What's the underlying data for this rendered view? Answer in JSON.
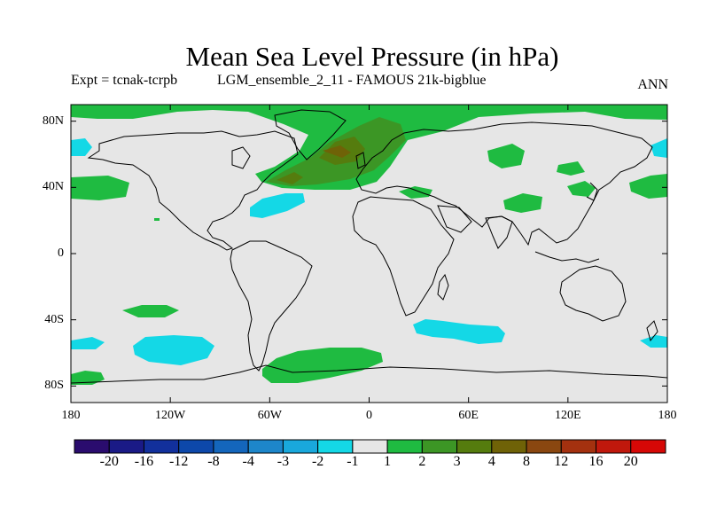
{
  "title": "Mean Sea Level Pressure (in hPa)",
  "experiment": "Expt = tcnak-tcrpb",
  "run_description": "LGM_ensemble_2_11 - FAMOUS 21k-bigblue",
  "season": "ANN",
  "map": {
    "projection": "cylindrical equidistant",
    "lon_range": [
      -180,
      180
    ],
    "lat_range": [
      -90,
      90
    ],
    "ocean_land_color": "#e6e6e6",
    "lat_ticks": [
      {
        "value": 80,
        "label": "80N"
      },
      {
        "value": 40,
        "label": "40N"
      },
      {
        "value": 0,
        "label": "0"
      },
      {
        "value": -40,
        "label": "40S"
      },
      {
        "value": -80,
        "label": "80S"
      }
    ],
    "lon_ticks": [
      {
        "value": -180,
        "label": "180"
      },
      {
        "value": -120,
        "label": "120W"
      },
      {
        "value": -60,
        "label": "60W"
      },
      {
        "value": 0,
        "label": "0"
      },
      {
        "value": 60,
        "label": "60E"
      },
      {
        "value": 120,
        "label": "120E"
      },
      {
        "value": 180,
        "label": "180"
      }
    ]
  },
  "colorbar": {
    "colors": [
      "#2a0c6e",
      "#1a1a86",
      "#12309c",
      "#0d48aa",
      "#1466bc",
      "#1d86ca",
      "#19a8dc",
      "#14d8e6",
      "#e6e6e6",
      "#1fbb41",
      "#3c9625",
      "#557c0e",
      "#6f6207",
      "#8a4710",
      "#a4310f",
      "#c0180c",
      "#d60806"
    ],
    "labels": [
      "-20",
      "-16",
      "-12",
      "-8",
      "-4",
      "-3",
      "-2",
      "-1",
      "1",
      "2",
      "3",
      "4",
      "8",
      "12",
      "16",
      "20"
    ]
  },
  "anomaly_colors": {
    "neg1": "#14d8e6",
    "pos1": "#1fbb41",
    "pos2": "#3c9625",
    "pos3": "#557c0e",
    "pos4": "#6f6207"
  }
}
